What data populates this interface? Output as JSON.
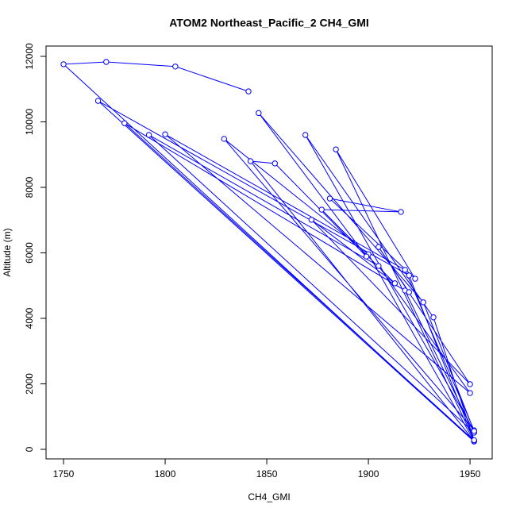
{
  "chart_data": {
    "type": "line",
    "title": "ATOM2 Northeast_Pacific_2 CH4_GMI",
    "x_label": "CH4_GMI",
    "y_label": "Altitude (m)",
    "x": [
      1841,
      1805,
      1771,
      1750,
      1952,
      1767,
      1920,
      1952,
      1780,
      1918,
      1952,
      1792,
      1905,
      1950,
      1800,
      1918,
      1952,
      1829,
      1900,
      1952,
      1842,
      1854,
      1899,
      1846,
      1927,
      1952,
      1869,
      1932,
      1952,
      1884,
      1923,
      1881,
      1916,
      1877,
      1913,
      1872,
      1950,
      1905,
      1920
    ],
    "values": [
      10930,
      11690,
      11830,
      11760,
      240,
      10640,
      5310,
      270,
      9960,
      4850,
      510,
      9600,
      5600,
      1720,
      9620,
      5480,
      580,
      9480,
      5960,
      250,
      8800,
      8730,
      5890,
      10270,
      4490,
      560,
      9600,
      4030,
      280,
      9160,
      5210,
      7660,
      7250,
      7320,
      5070,
      7010,
      1990,
      6180,
      4800
    ],
    "color": "#0000ff",
    "xlim": [
      1741.4,
      1960.9
    ],
    "ylim": [
      -291,
      12315
    ],
    "xticks": [
      1750,
      1800,
      1850,
      1900,
      1950
    ],
    "yticks": [
      0,
      2000,
      4000,
      6000,
      8000,
      10000,
      12000
    ]
  }
}
